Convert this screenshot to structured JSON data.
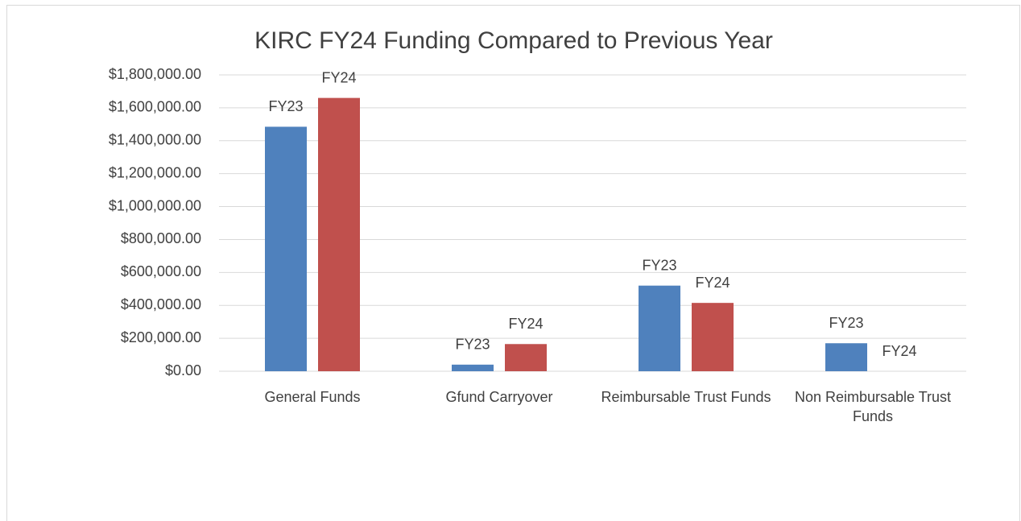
{
  "chart_data": {
    "type": "bar",
    "title": "KIRC FY24 Funding Compared to Previous Year",
    "categories": [
      "General Funds",
      "Gfund Carryover",
      "Reimbursable Trust Funds",
      "Non Reimbursable Trust Funds"
    ],
    "series": [
      {
        "name": "FY23",
        "color": "#4f81bd",
        "values": [
          1485000,
          40000,
          520000,
          170000
        ]
      },
      {
        "name": "FY24",
        "color": "#c0504d",
        "values": [
          1660000,
          165000,
          415000,
          0
        ]
      }
    ],
    "ylim": [
      0,
      1800000
    ],
    "yticks": [
      {
        "value": 0,
        "label": "$0.00"
      },
      {
        "value": 200000,
        "label": "$200,000.00"
      },
      {
        "value": 400000,
        "label": "$400,000.00"
      },
      {
        "value": 600000,
        "label": "$600,000.00"
      },
      {
        "value": 800000,
        "label": "$800,000.00"
      },
      {
        "value": 1000000,
        "label": "$1,000,000.00"
      },
      {
        "value": 1200000,
        "label": "$1,200,000.00"
      },
      {
        "value": 1400000,
        "label": "$1,400,000.00"
      },
      {
        "value": 1600000,
        "label": "$1,600,000.00"
      },
      {
        "value": 1800000,
        "label": "$1,800,000.00"
      }
    ],
    "grid": true
  }
}
